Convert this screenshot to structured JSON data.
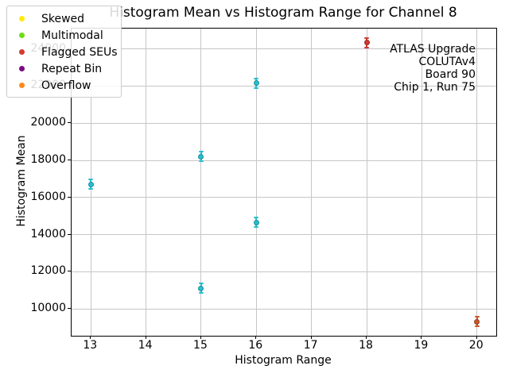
{
  "figure": {
    "background": "#ffffff"
  },
  "chart_data": {
    "type": "scatter",
    "title": "Histogram Mean vs Histogram Range for Channel 8",
    "xlabel": "Histogram Range",
    "ylabel": "Histogram Mean",
    "xlim": [
      12.65,
      20.35
    ],
    "ylim": [
      8550,
      25100
    ],
    "x_ticks": [
      13,
      14,
      15,
      16,
      17,
      18,
      19,
      20
    ],
    "y_ticks": [
      10000,
      12000,
      14000,
      16000,
      18000,
      20000,
      22000,
      24000
    ],
    "grid": true,
    "grid_color": "#c6c6c6",
    "legend_position": "upper left",
    "legend": [
      {
        "label": "Skewed",
        "color": "#ffed00"
      },
      {
        "label": "Multimodal",
        "color": "#6fdc13"
      },
      {
        "label": "Flagged SEUs",
        "color": "#d33b31"
      },
      {
        "label": "Repeat Bin",
        "color": "#7b0c80"
      },
      {
        "label": "Overflow",
        "color": "#ff8b1a"
      }
    ],
    "annotation": {
      "position": "upper right",
      "lines": [
        "ATLAS Upgrade",
        "COLUTAv4",
        "Board 90",
        "Chip 1, Run 75"
      ]
    },
    "points": [
      {
        "x": 13,
        "y": 16700,
        "color": "#28becf",
        "flag": "none"
      },
      {
        "x": 15,
        "y": 18200,
        "color": "#28becf",
        "flag": "none"
      },
      {
        "x": 15,
        "y": 11100,
        "color": "#28becf",
        "flag": "none"
      },
      {
        "x": 16,
        "y": 22150,
        "color": "#28becf",
        "flag": "none"
      },
      {
        "x": 16,
        "y": 14650,
        "color": "#28becf",
        "flag": "none"
      },
      {
        "x": 18,
        "y": 24350,
        "color": "#cf3a32",
        "flag": "Flagged SEUs"
      },
      {
        "x": 20,
        "y": 9300,
        "color": "#c9572b",
        "flag": "Overflow"
      }
    ]
  }
}
